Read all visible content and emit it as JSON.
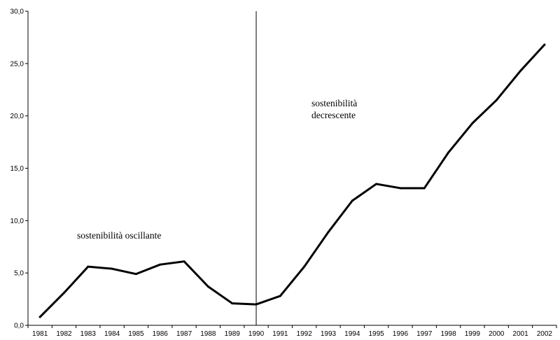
{
  "chart_data": {
    "type": "line",
    "title": "",
    "xlabel": "",
    "ylabel": "",
    "x": [
      "1981",
      "1982",
      "1983",
      "1984",
      "1985",
      "1986",
      "1987",
      "1988",
      "1989",
      "1990",
      "1991",
      "1992",
      "1993",
      "1994",
      "1995",
      "1996",
      "1997",
      "1998",
      "1999",
      "2000",
      "2001",
      "2002"
    ],
    "series": [
      {
        "values": [
          0.8,
          3.1,
          5.6,
          5.4,
          4.9,
          5.8,
          6.1,
          3.7,
          2.1,
          2.0,
          2.8,
          5.6,
          8.9,
          11.9,
          13.5,
          13.1,
          13.1,
          16.5,
          19.3,
          21.5,
          24.3,
          26.8
        ]
      }
    ],
    "ylim": [
      0,
      30
    ],
    "yticks": [
      "0,0",
      "5,0",
      "10,0",
      "15,0",
      "20,0",
      "25,0",
      "30,0"
    ],
    "grid": false,
    "legend": "none",
    "divider_at": "1990",
    "annotations": {
      "left_label": "sostenibilità oscillante",
      "right_label_line1": "sostenibilità",
      "right_label_line2": "decrescente"
    },
    "colors": {
      "line": "#000000",
      "axis": "#000000"
    }
  }
}
